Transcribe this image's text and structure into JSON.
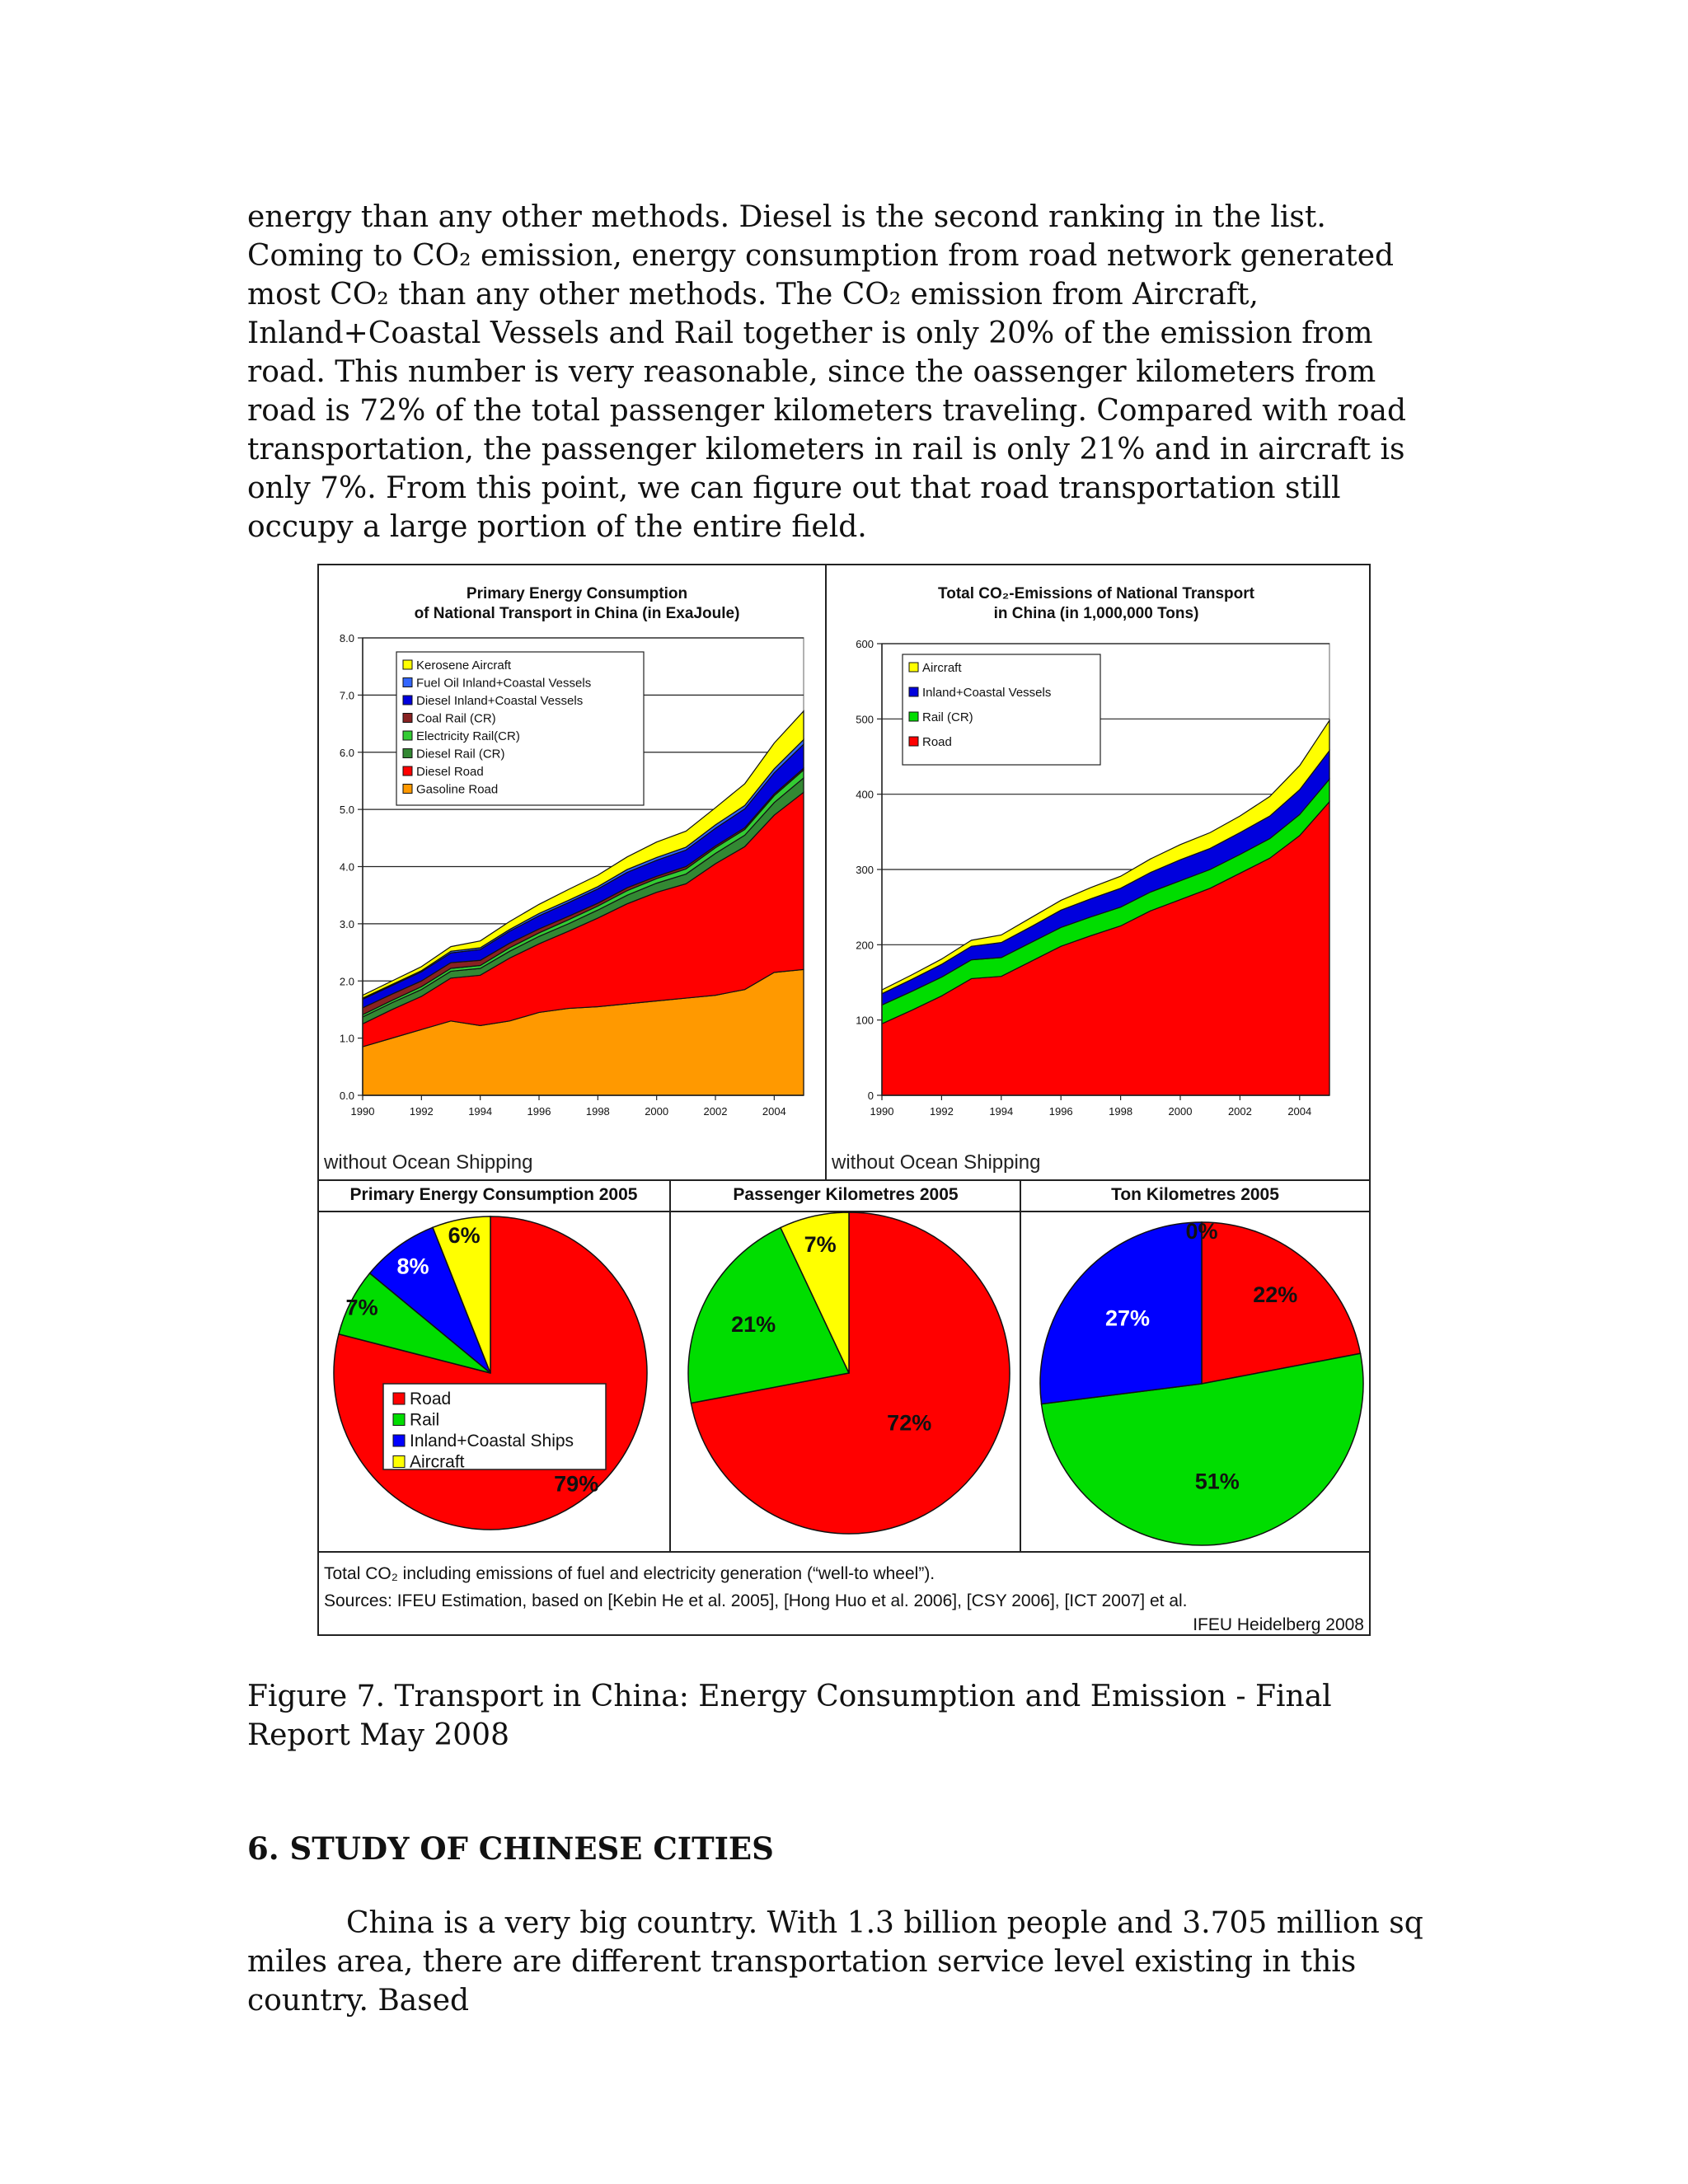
{
  "body_paragraph": "energy than any other methods. Diesel is the second ranking in the list. Coming to CO₂ emission, energy consumption from road network generated most CO₂ than any other methods. The CO₂ emission from Aircraft, Inland+Coastal Vessels and Rail together is only 20% of the emission from road. This number is very reasonable, since the oassenger kilometers from road is 72% of the total passenger kilometers traveling. Compared with road transportation, the passenger kilometers in rail is only 21% and in aircraft is only 7%. From this point, we can figure out that road transportation still occupy a large portion of the entire field.",
  "figure": {
    "note_left": "without Ocean Shipping",
    "note_right": "without Ocean Shipping",
    "footer_line1": "Total CO₂ including emissions of fuel and electricity generation (“well-to wheel”).",
    "footer_line2": "Sources: IFEU Estimation, based on [Kebin He et al. 2005], [Hong Huo et al. 2006], [CSY 2006], [ICT 2007] et al.",
    "footer_credit": "IFEU Heidelberg 2008",
    "pie_legend": [
      {
        "label": "Road",
        "color": "#ff0000"
      },
      {
        "label": "Rail",
        "color": "#00dd00"
      },
      {
        "label": "Inland+Coastal Ships",
        "color": "#0000ff"
      },
      {
        "label": "Aircraft",
        "color": "#ffff00"
      }
    ]
  },
  "caption": "Figure 7. Transport in China: Energy Consumption and Emission - Final Report May 2008",
  "section_heading": "6. STUDY OF CHINESE CITIES",
  "intro_paragraph": "China is a very big country. With 1.3 billion people and 3.705 million sq miles area, there are different transportation service level existing in this country. Based",
  "chart_data": [
    {
      "type": "area",
      "stacked": true,
      "title": "Primary Energy Consumption of National Transport in China (in ExaJoule)",
      "title_lines": [
        "Primary Energy Consumption",
        "of National Transport in China (in ExaJoule)"
      ],
      "x": [
        1990,
        1991,
        1992,
        1993,
        1994,
        1995,
        1996,
        1997,
        1998,
        1999,
        2000,
        2001,
        2002,
        2003,
        2004,
        2005
      ],
      "xticks": [
        1990,
        1992,
        1994,
        1996,
        1998,
        2000,
        2002,
        2004
      ],
      "ylim": [
        0,
        8
      ],
      "yticks": [
        "0.0",
        "1.0",
        "2.0",
        "3.0",
        "4.0",
        "5.0",
        "6.0",
        "7.0",
        "8.0"
      ],
      "grid": "horizontal",
      "legend_position": "top-left",
      "series": [
        {
          "name": "Gasoline Road",
          "color": "#ff9900",
          "values": [
            0.85,
            1.0,
            1.15,
            1.3,
            1.22,
            1.3,
            1.45,
            1.52,
            1.55,
            1.6,
            1.65,
            1.7,
            1.75,
            1.85,
            2.15,
            2.2
          ]
        },
        {
          "name": "Diesel Road",
          "color": "#ff0000",
          "values": [
            0.4,
            0.5,
            0.58,
            0.75,
            0.88,
            1.1,
            1.2,
            1.35,
            1.55,
            1.75,
            1.9,
            2.0,
            2.3,
            2.5,
            2.75,
            3.1
          ]
        },
        {
          "name": "Diesel Rail (CR)",
          "color": "#338833",
          "values": [
            0.12,
            0.12,
            0.12,
            0.12,
            0.12,
            0.12,
            0.13,
            0.13,
            0.14,
            0.15,
            0.16,
            0.17,
            0.18,
            0.2,
            0.22,
            0.25
          ]
        },
        {
          "name": "Electricity Rail(CR)",
          "color": "#33cc33",
          "values": [
            0.04,
            0.04,
            0.05,
            0.05,
            0.05,
            0.06,
            0.06,
            0.07,
            0.07,
            0.08,
            0.08,
            0.09,
            0.1,
            0.1,
            0.12,
            0.14
          ]
        },
        {
          "name": "Coal Rail (CR)",
          "color": "#882222",
          "values": [
            0.12,
            0.11,
            0.1,
            0.1,
            0.09,
            0.08,
            0.07,
            0.06,
            0.05,
            0.05,
            0.04,
            0.04,
            0.03,
            0.03,
            0.03,
            0.03
          ]
        },
        {
          "name": "Diesel Inland+Coastal Vessels",
          "color": "#0000dd",
          "values": [
            0.15,
            0.15,
            0.16,
            0.17,
            0.19,
            0.21,
            0.23,
            0.24,
            0.25,
            0.27,
            0.28,
            0.29,
            0.31,
            0.33,
            0.37,
            0.42
          ]
        },
        {
          "name": "Fuel Oil Inland+Coastal Vessels",
          "color": "#3366ff",
          "values": [
            0.02,
            0.02,
            0.02,
            0.03,
            0.03,
            0.03,
            0.04,
            0.04,
            0.04,
            0.05,
            0.05,
            0.05,
            0.06,
            0.06,
            0.07,
            0.08
          ]
        },
        {
          "name": "Kerosene Aircraft",
          "color": "#ffff00",
          "values": [
            0.05,
            0.06,
            0.07,
            0.08,
            0.12,
            0.14,
            0.16,
            0.19,
            0.2,
            0.22,
            0.27,
            0.28,
            0.3,
            0.38,
            0.45,
            0.5
          ]
        }
      ]
    },
    {
      "type": "area",
      "stacked": true,
      "title": "Total CO₂-Emissions of National Transport in China (in 1,000,000 Tons)",
      "title_lines": [
        "Total CO₂-Emissions of National Transport",
        "in China (in 1,000,000 Tons)"
      ],
      "x": [
        1990,
        1991,
        1992,
        1993,
        1994,
        1995,
        1996,
        1997,
        1998,
        1999,
        2000,
        2001,
        2002,
        2003,
        2004,
        2005
      ],
      "xticks": [
        1990,
        1992,
        1994,
        1996,
        1998,
        2000,
        2002,
        2004
      ],
      "ylim": [
        0,
        600
      ],
      "yticks": [
        "0",
        "100",
        "200",
        "300",
        "400",
        "500",
        "600"
      ],
      "grid": "horizontal",
      "legend_position": "top-left",
      "series": [
        {
          "name": "Road",
          "color": "#ff0000",
          "values": [
            95,
            113,
            132,
            155,
            158,
            178,
            198,
            212,
            225,
            245,
            260,
            275,
            295,
            315,
            345,
            390
          ]
        },
        {
          "name": "Rail (CR)",
          "color": "#00dd00",
          "values": [
            25,
            25,
            25,
            25,
            25,
            25,
            25,
            25,
            25,
            25,
            25,
            25,
            25,
            26,
            28,
            30
          ]
        },
        {
          "name": "Inland+Coastal Vessels",
          "color": "#0000dd",
          "values": [
            15,
            16,
            17,
            18,
            20,
            21,
            23,
            24,
            25,
            26,
            28,
            28,
            29,
            30,
            33,
            38
          ]
        },
        {
          "name": "Aircraft",
          "color": "#ffff00",
          "values": [
            5,
            6,
            7,
            8,
            10,
            12,
            13,
            15,
            16,
            18,
            20,
            21,
            22,
            26,
            32,
            40
          ]
        }
      ]
    },
    {
      "type": "pie",
      "title": "Primary Energy Consumption 2005",
      "categories": [
        "Road",
        "Rail",
        "Inland+Coastal Ships",
        "Aircraft"
      ],
      "values": [
        79,
        7,
        8,
        6
      ],
      "labels": [
        "79%",
        "7%",
        "8%",
        "6%"
      ],
      "colors": [
        "#ff0000",
        "#00dd00",
        "#0000ff",
        "#ffff00"
      ]
    },
    {
      "type": "pie",
      "title": "Passenger Kilometres 2005",
      "categories": [
        "Road",
        "Rail",
        "Inland+Coastal Ships",
        "Aircraft"
      ],
      "values": [
        72,
        21,
        0,
        7
      ],
      "labels": [
        "72%",
        "21%",
        "",
        "7%"
      ],
      "colors": [
        "#ff0000",
        "#00dd00",
        "#0000ff",
        "#ffff00"
      ]
    },
    {
      "type": "pie",
      "title": "Ton Kilometres 2005",
      "categories": [
        "Road",
        "Rail",
        "Inland+Coastal Ships",
        "Aircraft"
      ],
      "values": [
        22,
        51,
        27,
        0
      ],
      "labels": [
        "22%",
        "51%",
        "27%",
        "0%"
      ],
      "colors": [
        "#ff0000",
        "#00dd00",
        "#0000ff",
        "#ffff00"
      ]
    }
  ]
}
